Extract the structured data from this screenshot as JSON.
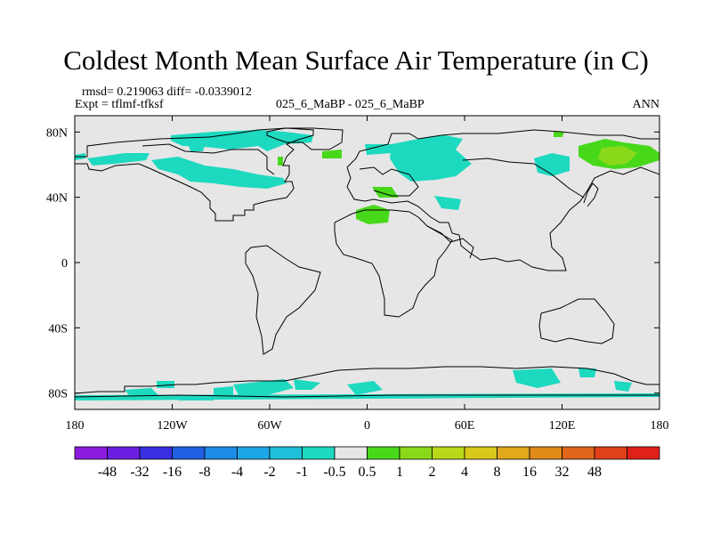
{
  "title": "Coldest Month Mean Surface Air Temperature (in C)",
  "stats": "rmsd= 0.219063 diff= -0.0339012",
  "expt": "Expt = tflmf-tfksf",
  "center_label": "025_6_MaBP - 025_6_MaBP",
  "season": "ANN",
  "lat_ticks": [
    {
      "label": "80N",
      "lat": 80
    },
    {
      "label": "40N",
      "lat": 40
    },
    {
      "label": "0",
      "lat": 0
    },
    {
      "label": "40S",
      "lat": -40
    },
    {
      "label": "80S",
      "lat": -80
    }
  ],
  "lon_ticks": [
    {
      "label": "180",
      "lon": -180
    },
    {
      "label": "120W",
      "lon": -120
    },
    {
      "label": "60W",
      "lon": -60
    },
    {
      "label": "0",
      "lon": 0
    },
    {
      "label": "60E",
      "lon": 60
    },
    {
      "label": "120E",
      "lon": 120
    },
    {
      "label": "180",
      "lon": 180
    }
  ],
  "colorbar": {
    "colors": [
      "#8c1be0",
      "#6a1fe0",
      "#3a2fe0",
      "#1f5fe0",
      "#1d8ae6",
      "#1da6e6",
      "#1dc0d8",
      "#1dd9c0",
      "#e6e6e6",
      "#48d81a",
      "#8ad81a",
      "#b8d81a",
      "#d8c81a",
      "#e0a81a",
      "#e08a1a",
      "#e0661a",
      "#e0401a",
      "#e0201a"
    ],
    "labels": [
      "-48",
      "-32",
      "-16",
      "-8",
      "-4",
      "-2",
      "-1",
      "-0.5",
      "0.5",
      "1",
      "2",
      "4",
      "8",
      "16",
      "32",
      "48"
    ]
  },
  "colors": {
    "background": "#e6e6e6",
    "cyan": "#1dd9c0",
    "green": "#48d81a",
    "yellowgreen": "#8ad81a"
  }
}
